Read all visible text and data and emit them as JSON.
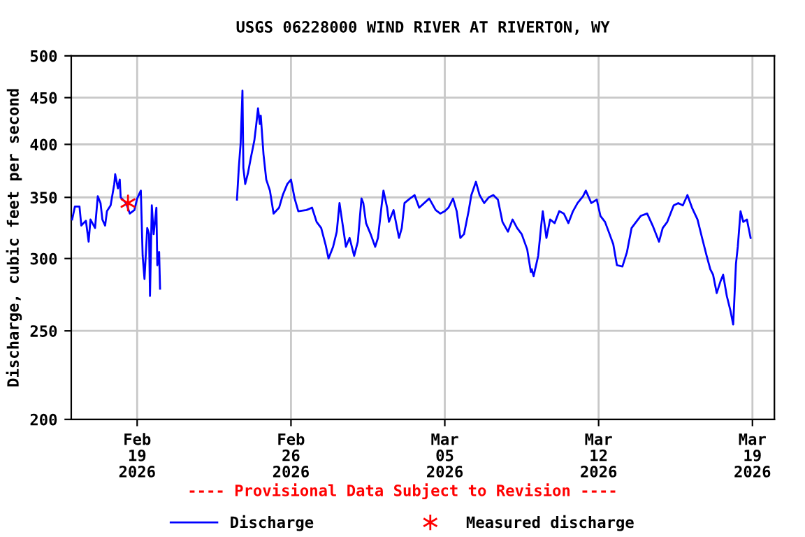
{
  "chart_data": {
    "type": "line",
    "title": "USGS 06228000 WIND RIVER AT RIVERTON, WY",
    "ylabel": "Discharge, cubic feet per second",
    "annotations": [
      "---- Provisional Data Subject to Revision ----"
    ],
    "series": [
      {
        "name": "Discharge",
        "color": "#0000ff",
        "marker": "none",
        "line_style": "solid",
        "x": [
          "2026-02-16T01:00",
          "2026-02-16T04:00",
          "2026-02-16T09:00",
          "2026-02-16T11:00",
          "2026-02-16T16:00",
          "2026-02-16T19:00",
          "2026-02-16T21:00",
          "2026-02-17T02:00",
          "2026-02-17T05:00",
          "2026-02-17T08:00",
          "2026-02-17T10:00",
          "2026-02-17T13:00",
          "2026-02-17T15:00",
          "2026-02-17T19:00",
          "2026-02-17T23:00",
          "2026-02-18T00:00",
          "2026-02-18T03:00",
          "2026-02-18T05:00",
          "2026-02-18T06:00",
          "2026-02-18T12:00",
          "2026-02-18T16:00",
          "2026-02-18T21:00",
          "2026-02-19T00:00",
          "2026-02-19T04:00",
          "2026-02-19T06:00",
          "2026-02-19T08:00",
          "2026-02-19T11:00",
          "2026-02-19T13:00",
          "2026-02-19T14:00",
          "2026-02-19T16:00",
          "2026-02-19T18:00",
          "2026-02-19T21:00",
          "2026-02-19T22:00",
          "2026-02-20T00:00",
          "2026-02-20T01:00",
          "2026-02-21T12:00",
          "2026-02-23T13:00",
          "2026-02-23T15:00",
          "2026-02-23T17:00",
          "2026-02-23T19:00",
          "2026-02-23T20:00",
          "2026-02-23T22:00",
          "2026-02-24T01:00",
          "2026-02-24T04:00",
          "2026-02-24T08:00",
          "2026-02-24T10:00",
          "2026-02-24T12:00",
          "2026-02-24T14:00",
          "2026-02-24T15:00",
          "2026-02-24T18:00",
          "2026-02-24T21:00",
          "2026-02-25T01:00",
          "2026-02-25T05:00",
          "2026-02-25T11:00",
          "2026-02-25T15:00",
          "2026-02-25T20:00",
          "2026-02-26T00:00",
          "2026-02-26T04:00",
          "2026-02-26T08:00",
          "2026-02-26T17:00",
          "2026-02-26T23:00",
          "2026-02-27T04:00",
          "2026-02-27T09:00",
          "2026-02-27T14:00",
          "2026-02-27T17:00",
          "2026-02-27T22:00",
          "2026-02-28T02:00",
          "2026-02-28T05:00",
          "2026-02-28T08:00",
          "2026-02-28T12:00",
          "2026-02-28T16:00",
          "2026-02-28T21:00",
          "2026-03-01T01:00",
          "2026-03-01T05:00",
          "2026-03-01T07:00",
          "2026-03-01T10:00",
          "2026-03-01T15:00",
          "2026-03-01T20:00",
          "2026-03-01T23:00",
          "2026-03-02T03:00",
          "2026-03-02T05:00",
          "2026-03-02T09:00",
          "2026-03-02T11:00",
          "2026-03-02T16:00",
          "2026-03-02T22:00",
          "2026-03-03T01:00",
          "2026-03-03T04:00",
          "2026-03-03T10:00",
          "2026-03-03T15:00",
          "2026-03-03T20:00",
          "2026-03-04T07:00",
          "2026-03-04T14:00",
          "2026-03-04T19:00",
          "2026-03-05T00:00",
          "2026-03-05T04:00",
          "2026-03-05T09:00",
          "2026-03-05T13:00",
          "2026-03-05T17:00",
          "2026-03-05T21:00",
          "2026-03-06T02:00",
          "2026-03-06T05:00",
          "2026-03-06T10:00",
          "2026-03-06T14:00",
          "2026-03-06T19:00",
          "2026-03-07T00:00",
          "2026-03-07T05:00",
          "2026-03-07T10:00",
          "2026-03-07T15:00",
          "2026-03-07T21:00",
          "2026-03-08T02:00",
          "2026-03-08T07:00",
          "2026-03-08T12:00",
          "2026-03-08T18:00",
          "2026-03-08T22:00",
          "2026-03-08T23:00",
          "2026-03-09T01:00",
          "2026-03-09T06:00",
          "2026-03-09T09:00",
          "2026-03-09T11:00",
          "2026-03-09T15:00",
          "2026-03-09T19:00",
          "2026-03-10T00:00",
          "2026-03-10T05:00",
          "2026-03-10T10:00",
          "2026-03-10T15:00",
          "2026-03-10T20:00",
          "2026-03-11T01:00",
          "2026-03-11T07:00",
          "2026-03-11T10:00",
          "2026-03-11T16:00",
          "2026-03-11T22:00",
          "2026-03-12T02:00",
          "2026-03-12T07:00",
          "2026-03-12T12:00",
          "2026-03-12T16:00",
          "2026-03-12T20:00",
          "2026-03-13T02:00",
          "2026-03-13T07:00",
          "2026-03-13T12:00",
          "2026-03-13T17:00",
          "2026-03-13T22:00",
          "2026-03-14T05:00",
          "2026-03-14T11:00",
          "2026-03-14T18:00",
          "2026-03-14T22:00",
          "2026-03-15T03:00",
          "2026-03-15T10:00",
          "2026-03-15T15:00",
          "2026-03-15T20:00",
          "2026-03-16T01:00",
          "2026-03-16T06:00",
          "2026-03-16T12:00",
          "2026-03-16T17:00",
          "2026-03-16T22:00",
          "2026-03-17T02:00",
          "2026-03-17T05:00",
          "2026-03-17T09:00",
          "2026-03-17T13:00",
          "2026-03-17T16:00",
          "2026-03-17T20:00",
          "2026-03-18T00:00",
          "2026-03-18T03:00",
          "2026-03-18T06:00",
          "2026-03-18T08:00",
          "2026-03-18T11:00",
          "2026-03-18T14:00",
          "2026-03-18T18:00",
          "2026-03-18T22:00"
        ],
        "values": [
          331,
          342,
          342,
          326,
          330,
          313,
          331,
          324,
          351,
          345,
          331,
          326,
          338,
          343,
          362,
          371,
          358,
          366,
          350,
          345,
          336,
          339,
          349,
          356,
          302,
          285,
          324,
          319,
          273,
          343,
          319,
          341,
          295,
          305,
          278,
          null,
          348,
          377,
          401,
          458,
          377,
          362,
          372,
          386,
          404,
          420,
          438,
          421,
          430,
          390,
          366,
          356,
          336,
          341,
          352,
          362,
          366,
          349,
          338,
          339,
          341,
          329,
          324,
          310,
          300,
          309,
          321,
          345,
          329,
          309,
          316,
          302,
          313,
          349,
          345,
          328,
          319,
          309,
          316,
          343,
          356,
          341,
          329,
          339,
          316,
          324,
          345,
          349,
          352,
          341,
          349,
          339,
          336,
          338,
          341,
          349,
          338,
          316,
          319,
          338,
          352,
          364,
          352,
          345,
          350,
          352,
          348,
          329,
          321,
          331,
          324,
          319,
          307,
          290,
          292,
          287,
          302,
          324,
          338,
          316,
          331,
          328,
          338,
          336,
          328,
          338,
          345,
          351,
          356,
          345,
          348,
          334,
          329,
          319,
          311,
          295,
          294,
          305,
          324,
          329,
          334,
          336,
          326,
          313,
          324,
          329,
          343,
          345,
          343,
          352,
          341,
          331,
          316,
          302,
          292,
          288,
          275,
          283,
          288,
          273,
          263,
          254,
          296,
          309,
          338,
          329,
          331,
          316
        ]
      },
      {
        "name": "Measured discharge",
        "type": "scatter",
        "color": "#ff0000",
        "marker": "cross",
        "x": [
          "2026-02-18T14:00"
        ],
        "values": [
          345
        ]
      }
    ],
    "xlim": [
      "2026-02-16",
      "2026-03-20"
    ],
    "xticks": [
      {
        "value": "2026-02-19",
        "label": "Feb\n19\n2026"
      },
      {
        "value": "2026-02-26",
        "label": "Feb\n26\n2026"
      },
      {
        "value": "2026-03-05",
        "label": "Mar\n05\n2026"
      },
      {
        "value": "2026-03-12",
        "label": "Mar\n12\n2026"
      },
      {
        "value": "2026-03-19",
        "label": "Mar\n19\n2026"
      }
    ],
    "log": "y",
    "ylim": [
      200,
      500
    ],
    "yticks": [
      200,
      250,
      300,
      350,
      400,
      450,
      500
    ],
    "grid": true,
    "legend": "bottom"
  }
}
